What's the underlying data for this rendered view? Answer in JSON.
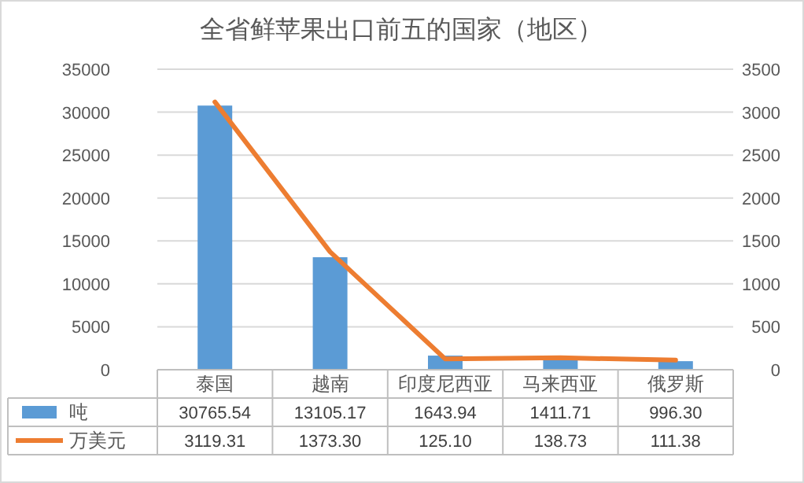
{
  "chart_data": {
    "type": "bar",
    "title": "全省鲜苹果出口前五的国家（地区）",
    "categories": [
      "泰国",
      "越南",
      "印度尼西亚",
      "马来西亚",
      "俄罗斯"
    ],
    "series": [
      {
        "name": "吨",
        "color": "#5b9bd5",
        "values": [
          30765.54,
          13105.17,
          1643.94,
          1411.71,
          996.3
        ],
        "value_labels": [
          "30765.54",
          "13105.17",
          "1643.94",
          "1411.71",
          "996.30"
        ]
      },
      {
        "name": "万美元",
        "type": "line",
        "axis": "y2",
        "color": "#ed7d31",
        "values": [
          3119.31,
          1373.3,
          125.1,
          138.73,
          111.38
        ],
        "value_labels": [
          "3119.31",
          "1373.30",
          "125.10",
          "138.73",
          "111.38"
        ]
      }
    ],
    "ylim": [
      0,
      35000
    ],
    "yticks": [
      0,
      5000,
      10000,
      15000,
      20000,
      25000,
      30000,
      35000
    ],
    "y2lim": [
      0,
      3500
    ],
    "y2ticks": [
      0,
      500,
      1000,
      1500,
      2000,
      2500,
      3000,
      3500
    ],
    "grid": "y",
    "legend": "bottom"
  }
}
